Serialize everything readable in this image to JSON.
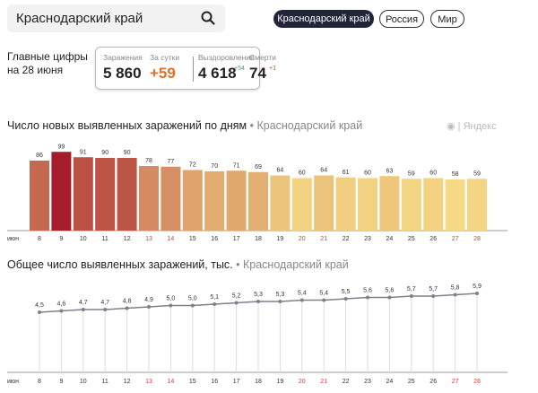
{
  "search": {
    "value": "Краснодарский край",
    "icon": "search-icon"
  },
  "region_tabs": [
    {
      "label": "Краснодарский край",
      "active": true
    },
    {
      "label": "Россия",
      "active": false
    },
    {
      "label": "Мир",
      "active": false
    }
  ],
  "stats": {
    "label_line1": "Главные цифры",
    "label_line2": "на 28 июня",
    "infections_label": "Заражения",
    "infections": "5 860",
    "daily_label": "За сутки",
    "daily": "+59",
    "recovered_label": "Выздоровления",
    "recovered": "4 618",
    "recovered_delta": "+54",
    "deaths_label": "Смерти",
    "deaths": "74",
    "deaths_delta": "+1",
    "colors": {
      "daily": "#e0702a",
      "recovered_delta": "#3aa76d",
      "deaths_delta": "#e0402a"
    }
  },
  "watermark": "Яндекс",
  "chart_data": [
    {
      "type": "bar",
      "title": "Число новых выявленных заражений по дням",
      "region": "Краснодарский край",
      "month_label": "июн",
      "categories": [
        "8",
        "9",
        "10",
        "11",
        "12",
        "13",
        "14",
        "15",
        "16",
        "17",
        "18",
        "19",
        "20",
        "21",
        "22",
        "23",
        "24",
        "25",
        "26",
        "27",
        "28"
      ],
      "weekend": [
        "13",
        "14",
        "20",
        "21",
        "27",
        "28"
      ],
      "values": [
        86,
        99,
        91,
        90,
        90,
        78,
        77,
        72,
        70,
        71,
        69,
        64,
        60,
        64,
        61,
        60,
        63,
        59,
        60,
        58,
        59
      ],
      "colors": {
        "high": "#a51d2d",
        "low": "#f6d985",
        "weekend_tick": "#d0433a"
      }
    },
    {
      "type": "line",
      "title": "Общее число выявленных заражений, тыс.",
      "region": "Краснодарский край",
      "month_label": "июн",
      "categories": [
        "8",
        "9",
        "10",
        "11",
        "12",
        "13",
        "14",
        "15",
        "16",
        "17",
        "18",
        "19",
        "20",
        "21",
        "22",
        "23",
        "24",
        "25",
        "26",
        "27",
        "28"
      ],
      "values": [
        4.5,
        4.6,
        4.7,
        4.7,
        4.8,
        4.9,
        5.0,
        5.0,
        5.1,
        5.2,
        5.3,
        5.3,
        5.4,
        5.4,
        5.5,
        5.6,
        5.6,
        5.7,
        5.7,
        5.8,
        5.9
      ],
      "labels": [
        "4,5",
        "4,6",
        "4,7",
        "4,7",
        "4,8",
        "4,9",
        "5,0",
        "5,0",
        "5,1",
        "5,2",
        "5,3",
        "5,3",
        "5,4",
        "5,4",
        "5,5",
        "5,6",
        "5,6",
        "5,7",
        "5,7",
        "5,8",
        "5,9"
      ],
      "colors": {
        "line": "#7d818c"
      }
    }
  ]
}
